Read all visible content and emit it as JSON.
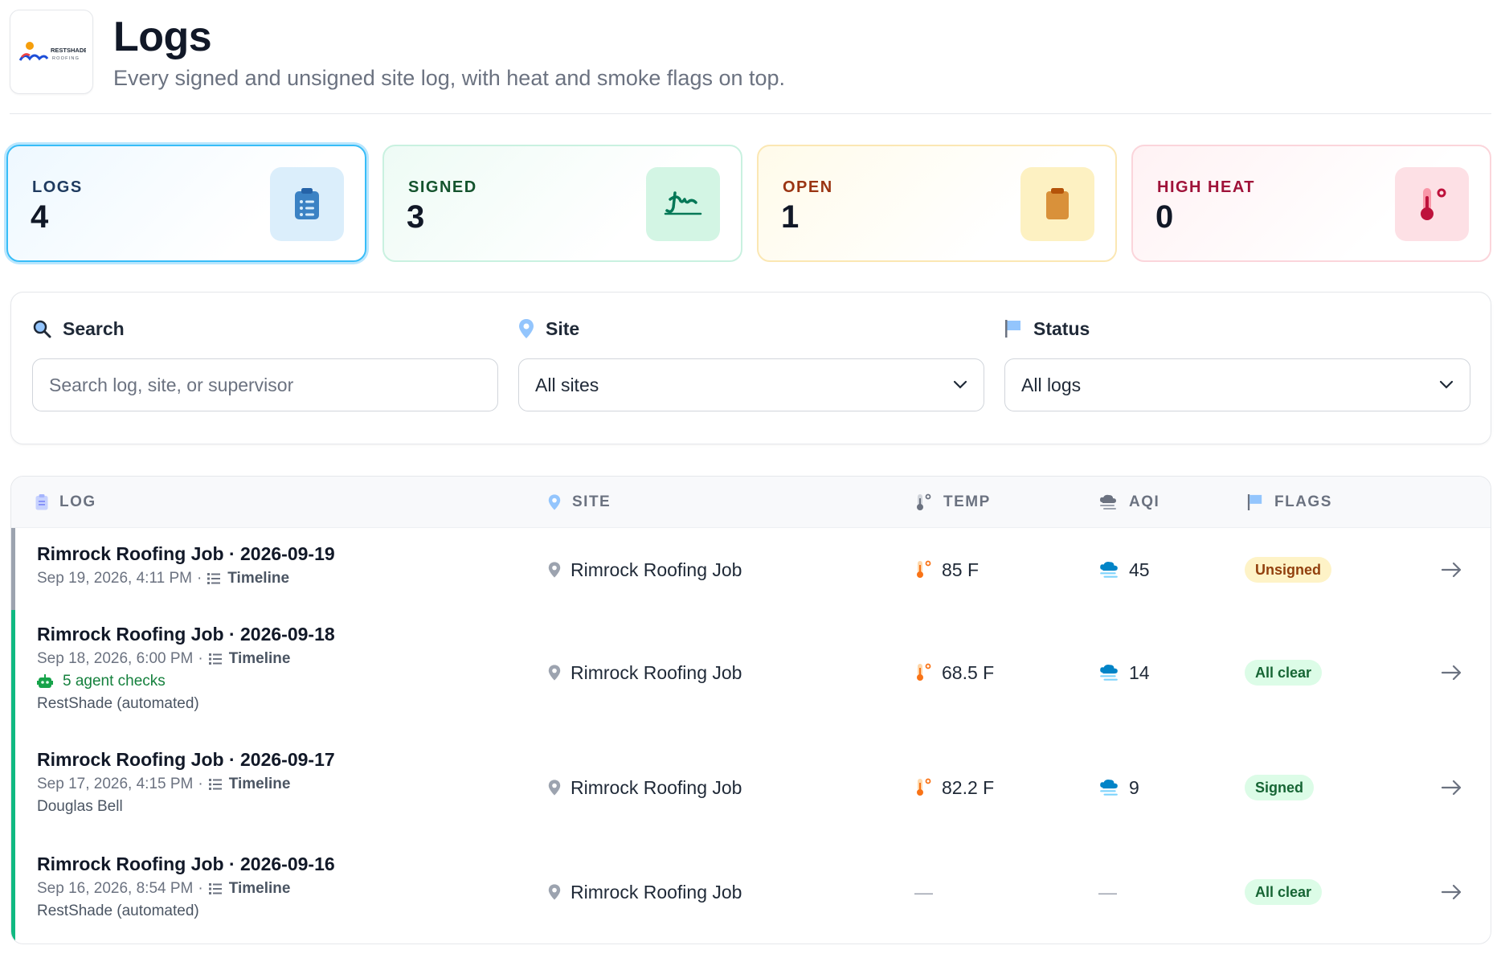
{
  "header": {
    "title": "Logs",
    "subtitle": "Every signed and unsigned site log, with heat and smoke flags on top.",
    "logo_text_1": "RESTSHADE",
    "logo_text_2": "ROOFING"
  },
  "stats": [
    {
      "label": "LOGS",
      "value": "4",
      "icon": "clipboard-icon"
    },
    {
      "label": "SIGNED",
      "value": "3",
      "icon": "signature-icon"
    },
    {
      "label": "OPEN",
      "value": "1",
      "icon": "clipboard-open-icon"
    },
    {
      "label": "HIGH HEAT",
      "value": "0",
      "icon": "thermometer-icon"
    }
  ],
  "filters": {
    "search": {
      "label": "Search",
      "placeholder": "Search log, site, or supervisor"
    },
    "site": {
      "label": "Site",
      "value": "All sites"
    },
    "status": {
      "label": "Status",
      "value": "All logs"
    }
  },
  "table": {
    "columns": {
      "log": "LOG",
      "site": "SITE",
      "temp": "TEMP",
      "aqi": "AQI",
      "flags": "FLAGS"
    },
    "rows": [
      {
        "title": "Rimrock Roofing Job · 2026-09-19",
        "date": "Sep 19, 2026, 4:11 PM",
        "timeline": "Timeline",
        "agent": "",
        "supervisor": "",
        "site": "Rimrock Roofing Job",
        "temp": "85 F",
        "aqi": "45",
        "flag": "Unsigned",
        "bar_color": "#9ca3af"
      },
      {
        "title": "Rimrock Roofing Job · 2026-09-18",
        "date": "Sep 18, 2026, 6:00 PM",
        "timeline": "Timeline",
        "agent": "5 agent checks",
        "supervisor": "RestShade (automated)",
        "site": "Rimrock Roofing Job",
        "temp": "68.5 F",
        "aqi": "14",
        "flag": "All clear",
        "bar_color": "#10b981"
      },
      {
        "title": "Rimrock Roofing Job · 2026-09-17",
        "date": "Sep 17, 2026, 4:15 PM",
        "timeline": "Timeline",
        "agent": "",
        "supervisor": "Douglas Bell",
        "site": "Rimrock Roofing Job",
        "temp": "82.2 F",
        "aqi": "9",
        "flag": "Signed",
        "bar_color": "#10b981"
      },
      {
        "title": "Rimrock Roofing Job · 2026-09-16",
        "date": "Sep 16, 2026, 8:54 PM",
        "timeline": "Timeline",
        "agent": "",
        "supervisor": "RestShade (automated)",
        "site": "Rimrock Roofing Job",
        "temp": "—",
        "aqi": "—",
        "flag": "All clear",
        "bar_color": "#10b981"
      }
    ]
  },
  "colors": {
    "accent": "#38bdf8",
    "signed": "#10b981",
    "unsigned_bg": "#fef3c7",
    "unsigned_text": "#92400e"
  }
}
